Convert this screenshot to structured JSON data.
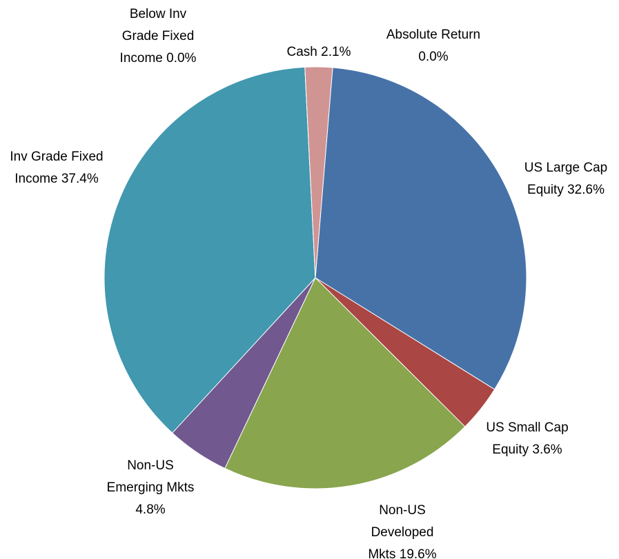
{
  "chart_data": {
    "type": "pie",
    "categories": [
      "Absolute Return",
      "US Large Cap Equity",
      "US Small Cap Equity",
      "Non-US Developed Mkts",
      "Non-US Emerging Mkts",
      "Inv Grade Fixed Income",
      "Below Inv Grade Fixed Income",
      "Cash"
    ],
    "values": [
      0.0,
      32.6,
      3.6,
      19.6,
      4.8,
      37.4,
      0.0,
      2.1
    ],
    "value_labels": [
      "0.0%",
      "32.6%",
      "3.6%",
      "19.6%",
      "4.8%",
      "37.4%",
      "0.0%",
      "2.1%"
    ],
    "colors": [
      "#4572a7",
      "#4672a8",
      "#aa4643",
      "#89a54e",
      "#71588f",
      "#4198af",
      "#db843d",
      "#d09493"
    ]
  }
}
